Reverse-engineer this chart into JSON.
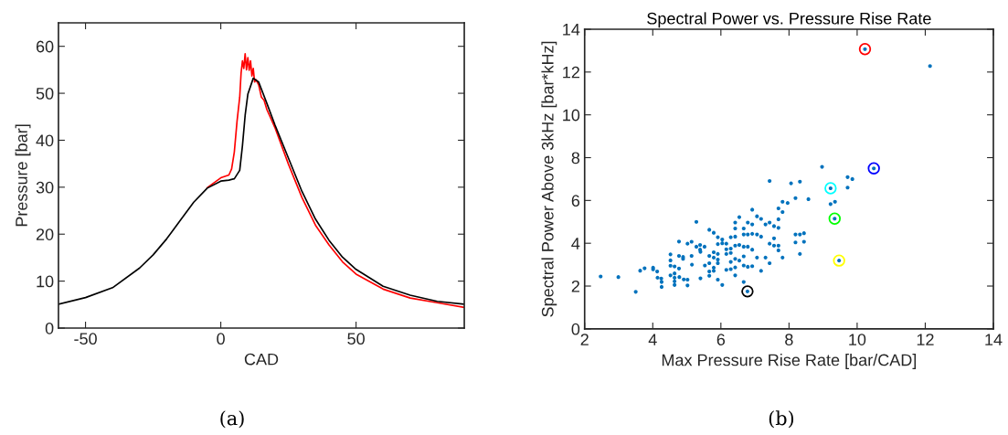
{
  "chart_data": [
    {
      "type": "line",
      "xlabel": "CAD",
      "ylabel": "Pressure [bar]",
      "annotations": [
        "(a)"
      ],
      "xlim": [
        -60,
        90
      ],
      "ylim": [
        0,
        65
      ],
      "xticks": [
        -50,
        0,
        50
      ],
      "yticks": [
        0,
        10,
        20,
        30,
        40,
        50,
        60
      ],
      "series": [
        {
          "color": "#ff0000",
          "x": [
            -5,
            0,
            3,
            4,
            5,
            6,
            7,
            7.5,
            8,
            8.5,
            9,
            9.5,
            10,
            10.5,
            11,
            11.5,
            12,
            12.5,
            13,
            14,
            15,
            16,
            17,
            18,
            20,
            25,
            30,
            35,
            40,
            45,
            50,
            60,
            70,
            80,
            90
          ],
          "values": [
            29.9,
            32.0,
            32.6,
            33.9,
            37.5,
            44.0,
            49.2,
            54.3,
            56.9,
            55.3,
            58.4,
            55.0,
            57.6,
            54.9,
            56.9,
            53.7,
            55.3,
            52.4,
            52.9,
            51.8,
            49.2,
            48.5,
            46.6,
            45.3,
            42.7,
            34.9,
            27.8,
            21.9,
            17.7,
            14.1,
            11.5,
            8.3,
            6.4,
            5.4,
            4.4
          ]
        },
        {
          "color": "#000000",
          "x": [
            -60,
            -50,
            -40,
            -30,
            -25,
            -20,
            -15,
            -10,
            -5,
            0,
            3,
            5,
            7,
            8,
            9,
            10,
            12,
            14,
            17,
            20,
            25,
            30,
            35,
            40,
            45,
            50,
            60,
            70,
            80,
            90
          ],
          "values": [
            5.1,
            6.5,
            8.6,
            12.8,
            15.6,
            19.0,
            22.9,
            26.8,
            29.8,
            31.3,
            31.5,
            31.8,
            33.6,
            38.8,
            45.3,
            49.8,
            53.2,
            52.4,
            47.9,
            43.3,
            36.2,
            29.1,
            23.2,
            18.7,
            15.1,
            12.5,
            8.9,
            7.0,
            5.7,
            5.1
          ]
        }
      ]
    },
    {
      "type": "scatter",
      "title": "Spectral Power vs. Pressure Rise Rate",
      "xlabel": "Max Pressure Rise Rate [bar/CAD]",
      "ylabel": "Spectral Power Above 3kHz [bar*kHz]",
      "annotations": [
        "(b)"
      ],
      "xlim": [
        2,
        14
      ],
      "ylim": [
        0,
        14
      ],
      "xticks": [
        2,
        4,
        6,
        8,
        10,
        12,
        14
      ],
      "yticks": [
        0,
        2,
        4,
        6,
        8,
        10,
        12,
        14
      ],
      "series": [
        {
          "color": "#0072bd",
          "marker": "point",
          "x": [
            2.47,
            2.99,
            3.5,
            3.63,
            3.76,
            4.01,
            4.01,
            4.13,
            4.14,
            4.25,
            4.26,
            4.26,
            4.52,
            4.52,
            4.52,
            4.52,
            4.64,
            4.64,
            4.64,
            4.64,
            4.64,
            4.77,
            4.77,
            4.77,
            4.78,
            4.89,
            4.89,
            4.91,
            5.02,
            5.02,
            5.02,
            5.14,
            5.14,
            5.15,
            5.28,
            5.28,
            5.39,
            5.39,
            5.4,
            5.4,
            5.52,
            5.53,
            5.66,
            5.66,
            5.66,
            5.66,
            5.66,
            5.79,
            5.79,
            5.79,
            5.79,
            5.79,
            5.91,
            5.91,
            5.91,
            5.91,
            5.91,
            5.91,
            6.04,
            6.04,
            6.04,
            6.16,
            6.16,
            6.16,
            6.16,
            6.29,
            6.29,
            6.29,
            6.29,
            6.29,
            6.42,
            6.42,
            6.42,
            6.42,
            6.42,
            6.42,
            6.42,
            6.54,
            6.54,
            6.54,
            6.67,
            6.67,
            6.67,
            6.67,
            6.67,
            6.67,
            6.78,
            6.79,
            6.79,
            6.79,
            6.79,
            6.92,
            6.92,
            6.92,
            6.92,
            6.92,
            7.06,
            7.06,
            7.06,
            7.18,
            7.18,
            7.18,
            7.31,
            7.31,
            7.43,
            7.43,
            7.43,
            7.43,
            7.56,
            7.56,
            7.56,
            7.69,
            7.69,
            7.69,
            7.69,
            7.69,
            7.81,
            7.81,
            7.81,
            7.96,
            8.06,
            8.19,
            8.19,
            8.19,
            8.32,
            8.32,
            8.32,
            8.44,
            8.44,
            8.57,
            8.97,
            9.22,
            9.22,
            9.34,
            9.35,
            9.47,
            9.72,
            9.72,
            9.86,
            10.23,
            10.49,
            12.14
          ],
          "values": [
            2.45,
            2.42,
            1.73,
            2.72,
            2.83,
            2.86,
            2.78,
            2.68,
            2.39,
            2.35,
            2.19,
            1.96,
            3.48,
            3.2,
            2.95,
            2.5,
            2.92,
            2.59,
            2.39,
            2.22,
            2.05,
            4.08,
            3.41,
            2.82,
            2.42,
            3.36,
            3.27,
            2.31,
            2.3,
            2.03,
            3.98,
            4.07,
            3.41,
            3.0,
            5.0,
            3.84,
            3.92,
            3.7,
            3.6,
            2.36,
            3.84,
            2.96,
            4.63,
            3.41,
            3.07,
            2.68,
            2.48,
            4.49,
            3.58,
            2.86,
            2.71,
            3.33,
            4.28,
            3.96,
            3.5,
            3.24,
            3.07,
            2.3,
            4.18,
            4.0,
            2.05,
            3.98,
            3.72,
            3.5,
            2.76,
            4.28,
            3.75,
            3.55,
            3.13,
            2.79,
            4.97,
            4.69,
            4.31,
            3.89,
            3.27,
            2.87,
            2.5,
            5.22,
            3.92,
            3.19,
            4.69,
            4.41,
            3.84,
            3.39,
            2.96,
            2.19,
            1.75,
            4.97,
            4.41,
            3.84,
            2.9,
            5.57,
            4.88,
            4.44,
            3.7,
            2.93,
            5.26,
            4.41,
            3.33,
            5.14,
            4.31,
            2.71,
            4.88,
            3.33,
            6.91,
            4.97,
            3.98,
            3.07,
            4.8,
            4.23,
            3.89,
            5.63,
            5.12,
            4.72,
            3.89,
            3.67,
            5.94,
            5.46,
            3.33,
            5.88,
            6.8,
            6.11,
            4.41,
            4.04,
            6.88,
            4.41,
            3.5,
            4.47,
            4.07,
            6.06,
            7.57,
            6.57,
            5.83,
            5.15,
            5.94,
            3.19,
            7.09,
            6.6,
            7.0,
            13.07,
            7.5,
            12.28
          ]
        },
        {
          "marker": "circle",
          "colors": [
            "#ff0000",
            "#0000ff",
            "#00ffff",
            "#00ff00",
            "#ffff00",
            "#000000"
          ],
          "x": [
            10.23,
            10.49,
            9.22,
            9.34,
            9.47,
            6.78
          ],
          "values": [
            13.07,
            7.5,
            6.57,
            5.15,
            3.19,
            1.75
          ]
        }
      ]
    }
  ]
}
